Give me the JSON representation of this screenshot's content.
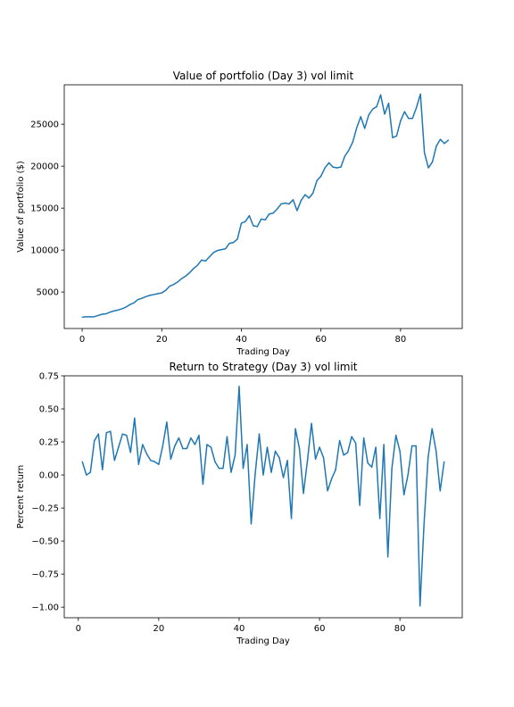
{
  "chart_data": [
    {
      "type": "line",
      "title": "Value of portfolio (Day 3) vol limit",
      "xlabel": "Trading Day",
      "ylabel": "Value of portfolio ($)",
      "xlim": [
        -4.5,
        95.5
      ],
      "ylim": [
        650,
        29700
      ],
      "xticks": [
        0,
        20,
        40,
        60,
        80
      ],
      "yticks": [
        5000,
        10000,
        15000,
        20000,
        25000
      ],
      "grid": false,
      "color": "#1f77b4",
      "x_start": 0,
      "values": [
        2000,
        2050,
        2050,
        2050,
        2200,
        2350,
        2400,
        2600,
        2750,
        2850,
        3000,
        3200,
        3500,
        3700,
        4100,
        4250,
        4450,
        4600,
        4700,
        4800,
        4900,
        5200,
        5700,
        5900,
        6200,
        6600,
        6900,
        7300,
        7800,
        8200,
        8800,
        8700,
        9200,
        9700,
        9950,
        10050,
        10150,
        10800,
        10900,
        11300,
        13200,
        13400,
        14100,
        12900,
        12800,
        13700,
        13600,
        14300,
        14400,
        14900,
        15500,
        15600,
        15500,
        16000,
        14700,
        15900,
        16600,
        16200,
        16800,
        18300,
        18800,
        19800,
        20400,
        19900,
        19800,
        19900,
        21200,
        21900,
        22900,
        24600,
        25900,
        24500,
        26100,
        26800,
        27100,
        28500,
        26200,
        27500,
        23400,
        23600,
        25400,
        26500,
        25700,
        25700,
        27000,
        28600,
        21600,
        19800,
        20500,
        22400,
        23200,
        22700,
        23100
      ]
    },
    {
      "type": "line",
      "title": "Return to Strategy (Day 3) vol limit",
      "xlabel": "Trading Day",
      "ylabel": "Percent return",
      "xlim": [
        -3.5,
        95.5
      ],
      "ylim": [
        -1.08,
        0.75
      ],
      "xticks": [
        0,
        20,
        40,
        60,
        80
      ],
      "yticks": [
        -1.0,
        -0.75,
        -0.5,
        -0.25,
        0.0,
        0.25,
        0.5,
        0.75
      ],
      "ytick_labels": [
        "−1.00",
        "−0.75",
        "−0.50",
        "−0.25",
        "0.00",
        "0.25",
        "0.50",
        "0.75"
      ],
      "grid": false,
      "color": "#1f77b4",
      "x_start": 1,
      "values": [
        0.1,
        0.0,
        0.02,
        0.26,
        0.31,
        0.04,
        0.32,
        0.33,
        0.11,
        0.21,
        0.31,
        0.3,
        0.17,
        0.43,
        0.08,
        0.23,
        0.16,
        0.11,
        0.1,
        0.08,
        0.22,
        0.4,
        0.12,
        0.22,
        0.28,
        0.2,
        0.2,
        0.28,
        0.23,
        0.3,
        -0.07,
        0.23,
        0.21,
        0.1,
        0.05,
        0.05,
        0.29,
        0.02,
        0.15,
        0.67,
        0.05,
        0.23,
        -0.37,
        0.01,
        0.31,
        0.0,
        0.21,
        0.02,
        0.18,
        0.13,
        -0.02,
        0.11,
        -0.33,
        0.35,
        0.2,
        -0.14,
        0.11,
        0.39,
        0.12,
        0.21,
        0.13,
        -0.12,
        -0.03,
        0.04,
        0.26,
        0.15,
        0.17,
        0.29,
        0.24,
        -0.23,
        0.28,
        0.09,
        0.06,
        0.21,
        -0.33,
        0.23,
        -0.62,
        0.05,
        0.3,
        0.18,
        -0.15,
        0.0,
        0.22,
        0.22,
        -0.99,
        -0.37,
        0.13,
        0.35,
        0.18,
        -0.12,
        0.1
      ]
    }
  ]
}
